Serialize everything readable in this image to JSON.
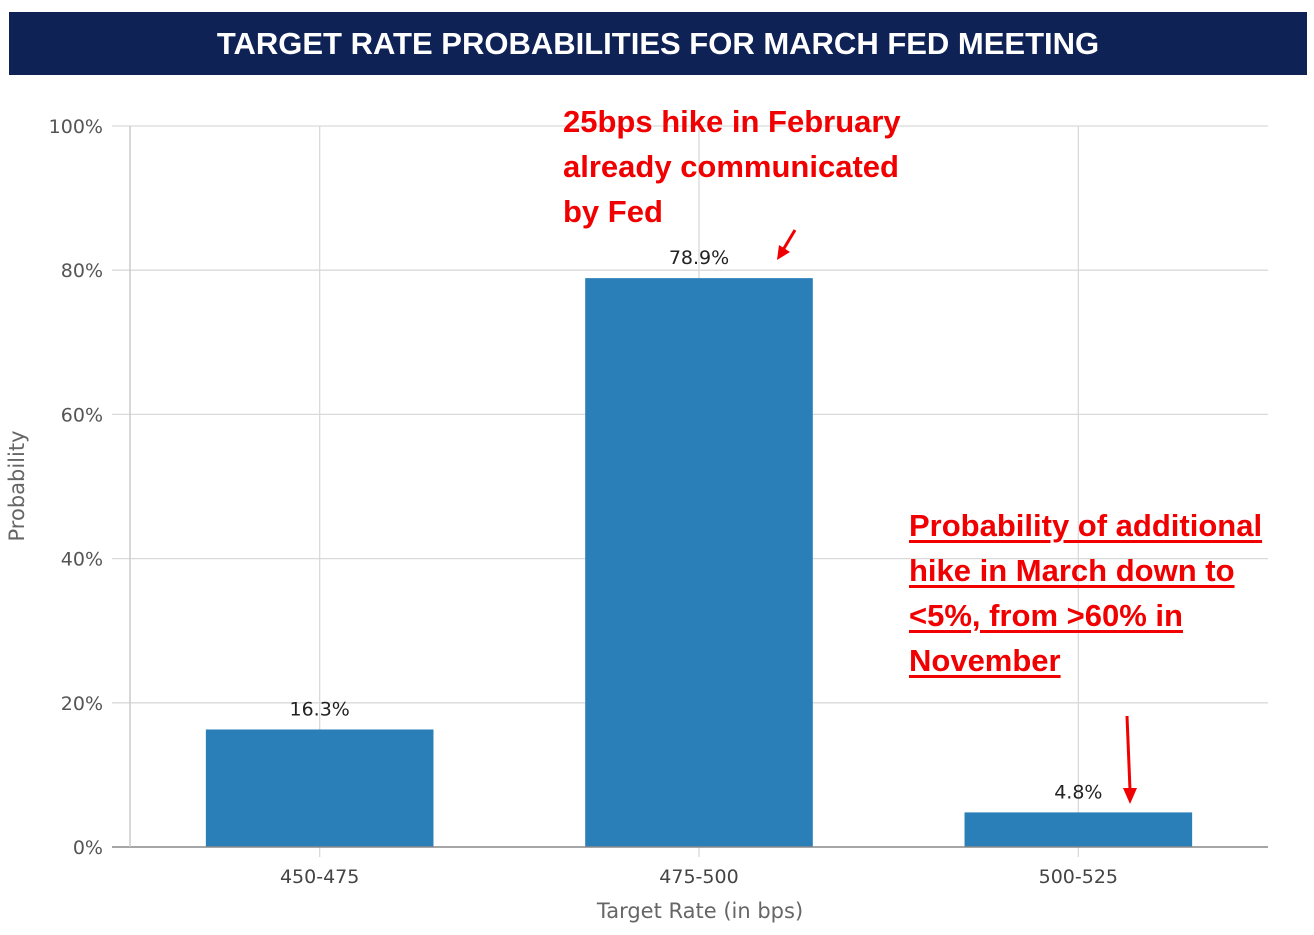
{
  "header": {
    "title": "TARGET RATE PROBABILITIES FOR MARCH FED MEETING"
  },
  "colors": {
    "header_bg": "#0f2256",
    "bar": "#2a7fb8",
    "annotation": "#f00000",
    "grid": "#d9d9d9"
  },
  "chart_data": {
    "type": "bar",
    "categories": [
      "450-475",
      "475-500",
      "500-525"
    ],
    "values": [
      16.3,
      78.9,
      4.8
    ],
    "data_labels": [
      "16.3%",
      "78.9%",
      "4.8%"
    ],
    "xlabel": "Target Rate (in bps)",
    "ylabel": "Probability",
    "ylim": [
      0,
      100
    ],
    "yticks": [
      "0%",
      "20%",
      "40%",
      "60%",
      "80%",
      "100%"
    ],
    "grid": true
  },
  "annotations": [
    {
      "lines": [
        "25bps hike in February",
        "already communicated",
        "by Fed"
      ]
    },
    {
      "lines": [
        "Probability of additional",
        "hike in March down to",
        "<5%, from >60% in",
        "November"
      ]
    }
  ]
}
